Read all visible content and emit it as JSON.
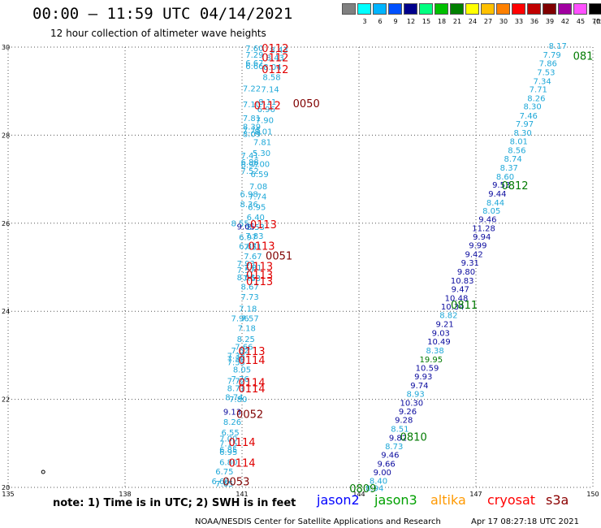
{
  "header": {
    "title": "00:00 – 11:59 UTC 04/14/2021",
    "subtitle": "12 hour collection of altimeter wave heights"
  },
  "legend_scale": {
    "unit": "(ft)",
    "bins": [
      {
        "label": "",
        "color": "#808080"
      },
      {
        "label": "3",
        "color": "#00ffff"
      },
      {
        "label": "6",
        "color": "#00b4ff"
      },
      {
        "label": "9",
        "color": "#0050ff"
      },
      {
        "label": "12",
        "color": "#00008c"
      },
      {
        "label": "15",
        "color": "#00ff80"
      },
      {
        "label": "18",
        "color": "#00c000"
      },
      {
        "label": "21",
        "color": "#008000"
      },
      {
        "label": "24",
        "color": "#ffff00"
      },
      {
        "label": "27",
        "color": "#ffc000"
      },
      {
        "label": "30",
        "color": "#ff8000"
      },
      {
        "label": "33",
        "color": "#ff0000"
      },
      {
        "label": "36",
        "color": "#c00000"
      },
      {
        "label": "39",
        "color": "#800000"
      },
      {
        "label": "42",
        "color": "#a000a0"
      },
      {
        "label": "45",
        "color": "#ff50ff"
      },
      {
        "label": "70",
        "color": "#000000"
      }
    ]
  },
  "map": {
    "lon_range": [
      135,
      150
    ],
    "lat_range": [
      20,
      30
    ],
    "lon_ticks": [
      135,
      138,
      141,
      144,
      147,
      150
    ],
    "lat_ticks": [
      20,
      22,
      24,
      26,
      28,
      30
    ],
    "lon_tick_labels": [
      "135",
      "138",
      "141",
      "144",
      "147",
      "150"
    ],
    "lat_tick_labels": [
      "20",
      "22",
      "24",
      "26",
      "28",
      "30"
    ]
  },
  "colors": {
    "cyan": "#1fa8d8",
    "navy": "#0a0a9e",
    "green": "#007a00",
    "red": "#e00000",
    "maroon": "#800000",
    "grid": "#555555"
  },
  "tracks": [
    {
      "name": "west",
      "points": [
        {
          "lon": 141.32,
          "lat": 29.96,
          "v": "7.60"
        },
        {
          "lon": 141.95,
          "lat": 29.93,
          "v": "8.43"
        },
        {
          "lon": 141.32,
          "lat": 29.82,
          "v": "7.29"
        },
        {
          "lon": 141.85,
          "lat": 29.75,
          "v": "8.43"
        },
        {
          "lon": 141.32,
          "lat": 29.63,
          "v": "6.67"
        },
        {
          "lon": 141.32,
          "lat": 29.56,
          "v": "6.66"
        },
        {
          "lon": 141.78,
          "lat": 29.54,
          "v": "8.04"
        },
        {
          "lon": 141.76,
          "lat": 29.31,
          "v": "8.58"
        },
        {
          "lon": 141.25,
          "lat": 29.05,
          "v": "7.22"
        },
        {
          "lon": 141.72,
          "lat": 29.03,
          "v": "7.14"
        },
        {
          "lon": 141.25,
          "lat": 28.69,
          "v": "7.10"
        },
        {
          "lon": 141.65,
          "lat": 28.75,
          "v": "8.11"
        },
        {
          "lon": 141.62,
          "lat": 28.58,
          "v": "6.96"
        },
        {
          "lon": 141.25,
          "lat": 28.38,
          "v": "7.81"
        },
        {
          "lon": 141.58,
          "lat": 28.33,
          "v": "7.90"
        },
        {
          "lon": 141.25,
          "lat": 28.18,
          "v": "8.39"
        },
        {
          "lon": 141.25,
          "lat": 28.1,
          "v": "7.75"
        },
        {
          "lon": 141.25,
          "lat": 28.02,
          "v": "8.09"
        },
        {
          "lon": 141.55,
          "lat": 28.07,
          "v": "8.01"
        },
        {
          "lon": 141.52,
          "lat": 27.83,
          "v": "7.81"
        },
        {
          "lon": 141.2,
          "lat": 27.53,
          "v": "7.41"
        },
        {
          "lon": 141.5,
          "lat": 27.58,
          "v": "5.30"
        },
        {
          "lon": 141.2,
          "lat": 27.38,
          "v": "6.88"
        },
        {
          "lon": 141.2,
          "lat": 27.32,
          "v": "6.97"
        },
        {
          "lon": 141.48,
          "lat": 27.33,
          "v": "7.00"
        },
        {
          "lon": 141.2,
          "lat": 27.18,
          "v": "7.52"
        },
        {
          "lon": 141.45,
          "lat": 27.1,
          "v": "6.59"
        },
        {
          "lon": 141.42,
          "lat": 26.83,
          "v": "7.08"
        },
        {
          "lon": 141.18,
          "lat": 26.65,
          "v": "6.98"
        },
        {
          "lon": 141.4,
          "lat": 26.6,
          "v": "7.74"
        },
        {
          "lon": 141.18,
          "lat": 26.42,
          "v": "8.36"
        },
        {
          "lon": 141.38,
          "lat": 26.36,
          "v": "6.95"
        },
        {
          "lon": 141.35,
          "lat": 26.13,
          "v": "6.40"
        },
        {
          "lon": 140.95,
          "lat": 25.99,
          "v": "8.55"
        },
        {
          "lon": 141.35,
          "lat": 25.9,
          "v": "8.53"
        },
        {
          "lon": 141.1,
          "lat": 25.91,
          "v": "9.05"
        },
        {
          "lon": 141.15,
          "lat": 25.67,
          "v": "6.97"
        },
        {
          "lon": 141.32,
          "lat": 25.7,
          "v": "7.83"
        },
        {
          "lon": 141.15,
          "lat": 25.47,
          "v": "6.87"
        },
        {
          "lon": 141.28,
          "lat": 25.45,
          "v": "7.51"
        },
        {
          "lon": 141.28,
          "lat": 25.24,
          "v": "7.67"
        },
        {
          "lon": 141.1,
          "lat": 25.07,
          "v": "7.93"
        },
        {
          "lon": 141.1,
          "lat": 24.93,
          "v": "7.57"
        },
        {
          "lon": 141.28,
          "lat": 24.98,
          "v": "7.81"
        },
        {
          "lon": 141.1,
          "lat": 24.76,
          "v": "8.06"
        },
        {
          "lon": 141.25,
          "lat": 24.74,
          "v": "7.63"
        },
        {
          "lon": 141.2,
          "lat": 24.55,
          "v": "8.67"
        },
        {
          "lon": 141.2,
          "lat": 24.32,
          "v": "7.73"
        },
        {
          "lon": 141.15,
          "lat": 24.05,
          "v": "7.18"
        },
        {
          "lon": 140.95,
          "lat": 23.83,
          "v": "7.96"
        },
        {
          "lon": 141.2,
          "lat": 23.83,
          "v": "7.57"
        },
        {
          "lon": 141.12,
          "lat": 23.61,
          "v": "7.18"
        },
        {
          "lon": 141.1,
          "lat": 23.36,
          "v": "8.25"
        },
        {
          "lon": 140.95,
          "lat": 23.1,
          "v": "7.62"
        },
        {
          "lon": 141.05,
          "lat": 23.18,
          "v": "7.66"
        },
        {
          "lon": 140.85,
          "lat": 22.98,
          "v": "7.38"
        },
        {
          "lon": 140.85,
          "lat": 22.91,
          "v": "7.39"
        },
        {
          "lon": 140.85,
          "lat": 22.83,
          "v": "7.55"
        },
        {
          "lon": 141.0,
          "lat": 22.67,
          "v": "8.05"
        },
        {
          "lon": 140.85,
          "lat": 22.41,
          "v": "7.72"
        },
        {
          "lon": 140.95,
          "lat": 22.45,
          "v": "7.76"
        },
        {
          "lon": 140.85,
          "lat": 22.24,
          "v": "8.71"
        },
        {
          "lon": 140.8,
          "lat": 22.04,
          "v": "8.74"
        },
        {
          "lon": 140.9,
          "lat": 21.99,
          "v": "7.80"
        },
        {
          "lon": 140.75,
          "lat": 21.71,
          "v": "9.13"
        },
        {
          "lon": 140.75,
          "lat": 21.48,
          "v": "8.26"
        },
        {
          "lon": 140.7,
          "lat": 21.24,
          "v": "6.55"
        },
        {
          "lon": 140.65,
          "lat": 21.1,
          "v": "7.00"
        },
        {
          "lon": 140.65,
          "lat": 20.99,
          "v": "7.15"
        },
        {
          "lon": 140.65,
          "lat": 20.85,
          "v": "6.85"
        },
        {
          "lon": 140.65,
          "lat": 20.79,
          "v": "6.95"
        },
        {
          "lon": 140.65,
          "lat": 20.56,
          "v": "6.80"
        },
        {
          "lon": 140.55,
          "lat": 20.35,
          "v": "6.75"
        },
        {
          "lon": 140.45,
          "lat": 20.13,
          "v": "6.66"
        },
        {
          "lon": 140.55,
          "lat": 20.07,
          "v": "7.65"
        }
      ]
    },
    {
      "name": "east",
      "points": [
        {
          "lon": 149.1,
          "lat": 30.02,
          "v": "8.17"
        },
        {
          "lon": 148.95,
          "lat": 29.82,
          "v": "7.79"
        },
        {
          "lon": 148.85,
          "lat": 29.62,
          "v": "7.86"
        },
        {
          "lon": 148.8,
          "lat": 29.42,
          "v": "7.53"
        },
        {
          "lon": 148.7,
          "lat": 29.22,
          "v": "7.34"
        },
        {
          "lon": 148.6,
          "lat": 29.03,
          "v": "7.71"
        },
        {
          "lon": 148.55,
          "lat": 28.83,
          "v": "8.26"
        },
        {
          "lon": 148.45,
          "lat": 28.64,
          "v": "8.30"
        },
        {
          "lon": 148.35,
          "lat": 28.43,
          "v": "7.46"
        },
        {
          "lon": 148.25,
          "lat": 28.25,
          "v": "7.97"
        },
        {
          "lon": 148.2,
          "lat": 28.04,
          "v": "8.30"
        },
        {
          "lon": 148.1,
          "lat": 27.85,
          "v": "8.01"
        },
        {
          "lon": 148.05,
          "lat": 27.65,
          "v": "8.56"
        },
        {
          "lon": 147.95,
          "lat": 27.45,
          "v": "8.74"
        },
        {
          "lon": 147.85,
          "lat": 27.25,
          "v": "8.37"
        },
        {
          "lon": 147.75,
          "lat": 27.05,
          "v": "8.60"
        },
        {
          "lon": 147.65,
          "lat": 26.86,
          "v": "9.53"
        },
        {
          "lon": 147.55,
          "lat": 26.66,
          "v": "9.44"
        },
        {
          "lon": 147.5,
          "lat": 26.46,
          "v": "8.44"
        },
        {
          "lon": 147.4,
          "lat": 26.27,
          "v": "8.05"
        },
        {
          "lon": 147.3,
          "lat": 26.08,
          "v": "9.46"
        },
        {
          "lon": 147.2,
          "lat": 25.88,
          "v": "11.28"
        },
        {
          "lon": 147.15,
          "lat": 25.68,
          "v": "9.94"
        },
        {
          "lon": 147.05,
          "lat": 25.49,
          "v": "9.99"
        },
        {
          "lon": 146.95,
          "lat": 25.29,
          "v": "9.42"
        },
        {
          "lon": 146.85,
          "lat": 25.09,
          "v": "9.31"
        },
        {
          "lon": 146.75,
          "lat": 24.89,
          "v": "9.80"
        },
        {
          "lon": 146.65,
          "lat": 24.69,
          "v": "10.83"
        },
        {
          "lon": 146.6,
          "lat": 24.49,
          "v": "9.47"
        },
        {
          "lon": 146.5,
          "lat": 24.29,
          "v": "10.48"
        },
        {
          "lon": 146.4,
          "lat": 24.1,
          "v": "10.34"
        },
        {
          "lon": 146.3,
          "lat": 23.9,
          "v": "8.82"
        },
        {
          "lon": 146.2,
          "lat": 23.7,
          "v": "9.21"
        },
        {
          "lon": 146.1,
          "lat": 23.5,
          "v": "9.03"
        },
        {
          "lon": 146.05,
          "lat": 23.3,
          "v": "10.49"
        },
        {
          "lon": 145.95,
          "lat": 23.1,
          "v": "8.38"
        },
        {
          "lon": 145.85,
          "lat": 22.9,
          "v": "19.95"
        },
        {
          "lon": 145.75,
          "lat": 22.7,
          "v": "10.59"
        },
        {
          "lon": 145.65,
          "lat": 22.51,
          "v": "9.93"
        },
        {
          "lon": 145.55,
          "lat": 22.31,
          "v": "9.74"
        },
        {
          "lon": 145.45,
          "lat": 22.11,
          "v": "8.93"
        },
        {
          "lon": 145.35,
          "lat": 21.91,
          "v": "10.30"
        },
        {
          "lon": 145.25,
          "lat": 21.72,
          "v": "9.26"
        },
        {
          "lon": 145.15,
          "lat": 21.52,
          "v": "9.28"
        },
        {
          "lon": 145.05,
          "lat": 21.32,
          "v": "8.51"
        },
        {
          "lon": 145.0,
          "lat": 21.12,
          "v": "9.82"
        },
        {
          "lon": 144.9,
          "lat": 20.92,
          "v": "8.73"
        },
        {
          "lon": 144.8,
          "lat": 20.73,
          "v": "9.46"
        },
        {
          "lon": 144.7,
          "lat": 20.53,
          "v": "9.66"
        },
        {
          "lon": 144.6,
          "lat": 20.33,
          "v": "9.00"
        },
        {
          "lon": 144.5,
          "lat": 20.14,
          "v": "8.40"
        },
        {
          "lon": 144.4,
          "lat": 19.97,
          "v": "8.94"
        }
      ]
    }
  ],
  "time_labels": [
    {
      "lon": 141.85,
      "lat": 29.98,
      "t": "0112",
      "color": "red"
    },
    {
      "lon": 141.85,
      "lat": 29.77,
      "t": "0112",
      "color": "red"
    },
    {
      "lon": 141.85,
      "lat": 29.5,
      "t": "0112",
      "color": "red"
    },
    {
      "lon": 141.65,
      "lat": 28.68,
      "t": "0112",
      "color": "red"
    },
    {
      "lon": 142.65,
      "lat": 28.73,
      "t": "0050",
      "color": "maroon"
    },
    {
      "lon": 141.55,
      "lat": 25.98,
      "t": "0113",
      "color": "red"
    },
    {
      "lon": 141.5,
      "lat": 25.49,
      "t": "0113",
      "color": "red"
    },
    {
      "lon": 141.95,
      "lat": 25.27,
      "t": "0051",
      "color": "maroon"
    },
    {
      "lon": 141.45,
      "lat": 25.03,
      "t": "0113",
      "color": "red"
    },
    {
      "lon": 141.45,
      "lat": 24.83,
      "t": "0113",
      "color": "red"
    },
    {
      "lon": 141.45,
      "lat": 24.69,
      "t": "0113",
      "color": "red"
    },
    {
      "lon": 141.25,
      "lat": 23.1,
      "t": "0113",
      "color": "red"
    },
    {
      "lon": 141.25,
      "lat": 22.9,
      "t": "0114",
      "color": "red"
    },
    {
      "lon": 141.25,
      "lat": 22.39,
      "t": "0114",
      "color": "red"
    },
    {
      "lon": 141.25,
      "lat": 22.25,
      "t": "0114",
      "color": "red"
    },
    {
      "lon": 141.2,
      "lat": 21.67,
      "t": "0052",
      "color": "maroon"
    },
    {
      "lon": 141.0,
      "lat": 21.03,
      "t": "0114",
      "color": "red"
    },
    {
      "lon": 141.0,
      "lat": 20.56,
      "t": "0114",
      "color": "red"
    },
    {
      "lon": 140.85,
      "lat": 20.14,
      "t": "0053",
      "color": "maroon"
    },
    {
      "lon": 149.75,
      "lat": 29.81,
      "t": "081",
      "color": "green"
    },
    {
      "lon": 148.0,
      "lat": 26.86,
      "t": "0812",
      "color": "green"
    },
    {
      "lon": 146.7,
      "lat": 24.15,
      "t": "0811",
      "color": "green"
    },
    {
      "lon": 145.4,
      "lat": 21.15,
      "t": "0810",
      "color": "green"
    },
    {
      "lon": 144.1,
      "lat": 19.98,
      "t": "0809",
      "color": "green"
    }
  ],
  "bottom": {
    "note": "note:  1) Time is in UTC;  2) SWH is in feet",
    "satellites": [
      {
        "name": "jason2",
        "color": "#0000ff"
      },
      {
        "name": "jason3",
        "color": "#00a000"
      },
      {
        "name": "altika",
        "color": "#ff9900"
      },
      {
        "name": "cryosat",
        "color": "#ff0000"
      },
      {
        "name": "s3a",
        "color": "#8b0000"
      }
    ],
    "credit": "NOAA/NESDIS Center for Satellite Applications and Research",
    "timestamp": "Apr 17 08:27:18 UTC 2021"
  }
}
